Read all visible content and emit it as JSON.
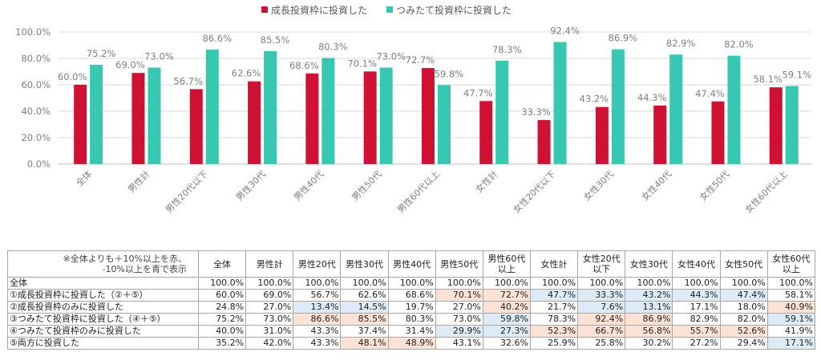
{
  "chart_data": {
    "type": "bar",
    "title": "",
    "xlabel": "",
    "ylabel": "",
    "ylim": [
      0,
      100
    ],
    "yticks": [
      "0.0%",
      "20.0%",
      "40.0%",
      "60.0%",
      "80.0%",
      "100.0%"
    ],
    "grid": true,
    "legend_position": "top-center",
    "categories": [
      "全体",
      "男性計",
      "男性20代以下",
      "男性30代",
      "男性40代",
      "男性50代",
      "男性60代以上",
      "女性計",
      "女性20代以下",
      "女性30代",
      "女性40代",
      "女性50代",
      "女性60代以上"
    ],
    "series": [
      {
        "name": "成長投資枠に投資した",
        "color": "#cf1233",
        "values": [
          60.0,
          69.0,
          56.7,
          62.6,
          68.6,
          70.1,
          72.7,
          47.7,
          33.3,
          43.2,
          44.3,
          47.4,
          58.1
        ],
        "labels": [
          "60.0%",
          "69.0%",
          "56.7%",
          "62.6%",
          "68.6%",
          "70.1%",
          "72.7%",
          "47.7%",
          "33.3%",
          "43.2%",
          "44.3%",
          "47.4%",
          "58.1%"
        ]
      },
      {
        "name": "つみたて投資枠に投資した",
        "color": "#36c8b0",
        "values": [
          75.2,
          73.0,
          86.6,
          85.5,
          80.3,
          73.0,
          59.8,
          78.3,
          92.4,
          86.9,
          82.9,
          82.0,
          59.1
        ],
        "labels": [
          "75.2%",
          "73.0%",
          "86.6%",
          "85.5%",
          "80.3%",
          "73.0%",
          "59.8%",
          "78.3%",
          "92.4%",
          "86.9%",
          "82.9%",
          "82.0%",
          "59.1%"
        ]
      }
    ]
  },
  "table": {
    "note": "※全体よりも＋10%以上を赤、\n-10%以上を青で表示",
    "headers": [
      "全体",
      "男性計",
      "男性20代",
      "男性30代",
      "男性40代",
      "男性50代",
      "男性60代以上",
      "女性計",
      "女性20代以下",
      "女性30代",
      "女性40代",
      "女性50代",
      "女性60代以上"
    ],
    "rows": [
      {
        "label": "全体",
        "values": [
          "100.0%",
          "100.0%",
          "100.0%",
          "100.0%",
          "100.0%",
          "100.0%",
          "100.0%",
          "100.0%",
          "100.0%",
          "100.0%",
          "100.0%",
          "100.0%",
          "100.0%"
        ],
        "highlight": [
          "",
          "",
          "",
          "",
          "",
          "",
          "",
          "",
          "",
          "",
          "",
          "",
          ""
        ]
      },
      {
        "label": "①成長投資枠に投資した（②＋⑤）",
        "values": [
          "60.0%",
          "69.0%",
          "56.7%",
          "62.6%",
          "68.6%",
          "70.1%",
          "72.7%",
          "47.7%",
          "33.3%",
          "43.2%",
          "44.3%",
          "47.4%",
          "58.1%"
        ],
        "highlight": [
          "",
          "",
          "",
          "",
          "",
          "red",
          "red",
          "blue",
          "blue",
          "blue",
          "blue",
          "blue",
          ""
        ]
      },
      {
        "label": "②成長投資枠のみに投資した",
        "values": [
          "24.8%",
          "27.0%",
          "13.4%",
          "14.5%",
          "19.7%",
          "27.0%",
          "40.2%",
          "21.7%",
          "7.6%",
          "13.1%",
          "17.1%",
          "18.0%",
          "40.9%"
        ],
        "highlight": [
          "",
          "",
          "blue",
          "blue",
          "",
          "",
          "red",
          "",
          "blue",
          "blue",
          "",
          "",
          "red"
        ]
      },
      {
        "label": "③つみたて投資枠に投資した（④＋⑤）",
        "values": [
          "75.2%",
          "73.0%",
          "86.6%",
          "85.5%",
          "80.3%",
          "73.0%",
          "59.8%",
          "78.3%",
          "92.4%",
          "86.9%",
          "82.9%",
          "82.0%",
          "59.1%"
        ],
        "highlight": [
          "",
          "",
          "red",
          "red",
          "",
          "",
          "blue",
          "",
          "red",
          "red",
          "",
          "",
          "blue"
        ]
      },
      {
        "label": "④つみたて投資枠のみに投資した",
        "values": [
          "40.0%",
          "31.0%",
          "43.3%",
          "37.4%",
          "31.4%",
          "29.9%",
          "27.3%",
          "52.3%",
          "66.7%",
          "56.8%",
          "55.7%",
          "52.6%",
          "41.9%"
        ],
        "highlight": [
          "",
          "",
          "",
          "",
          "",
          "blue",
          "blue",
          "red",
          "red",
          "red",
          "red",
          "red",
          ""
        ]
      },
      {
        "label": "⑤両方に投資した",
        "values": [
          "35.2%",
          "42.0%",
          "43.3%",
          "48.1%",
          "48.9%",
          "43.1%",
          "32.6%",
          "25.9%",
          "25.8%",
          "30.2%",
          "27.2%",
          "29.4%",
          "17.1%"
        ],
        "highlight": [
          "",
          "",
          "",
          "red",
          "red",
          "",
          "",
          "",
          "",
          "",
          "",
          "",
          "blue"
        ]
      }
    ]
  }
}
